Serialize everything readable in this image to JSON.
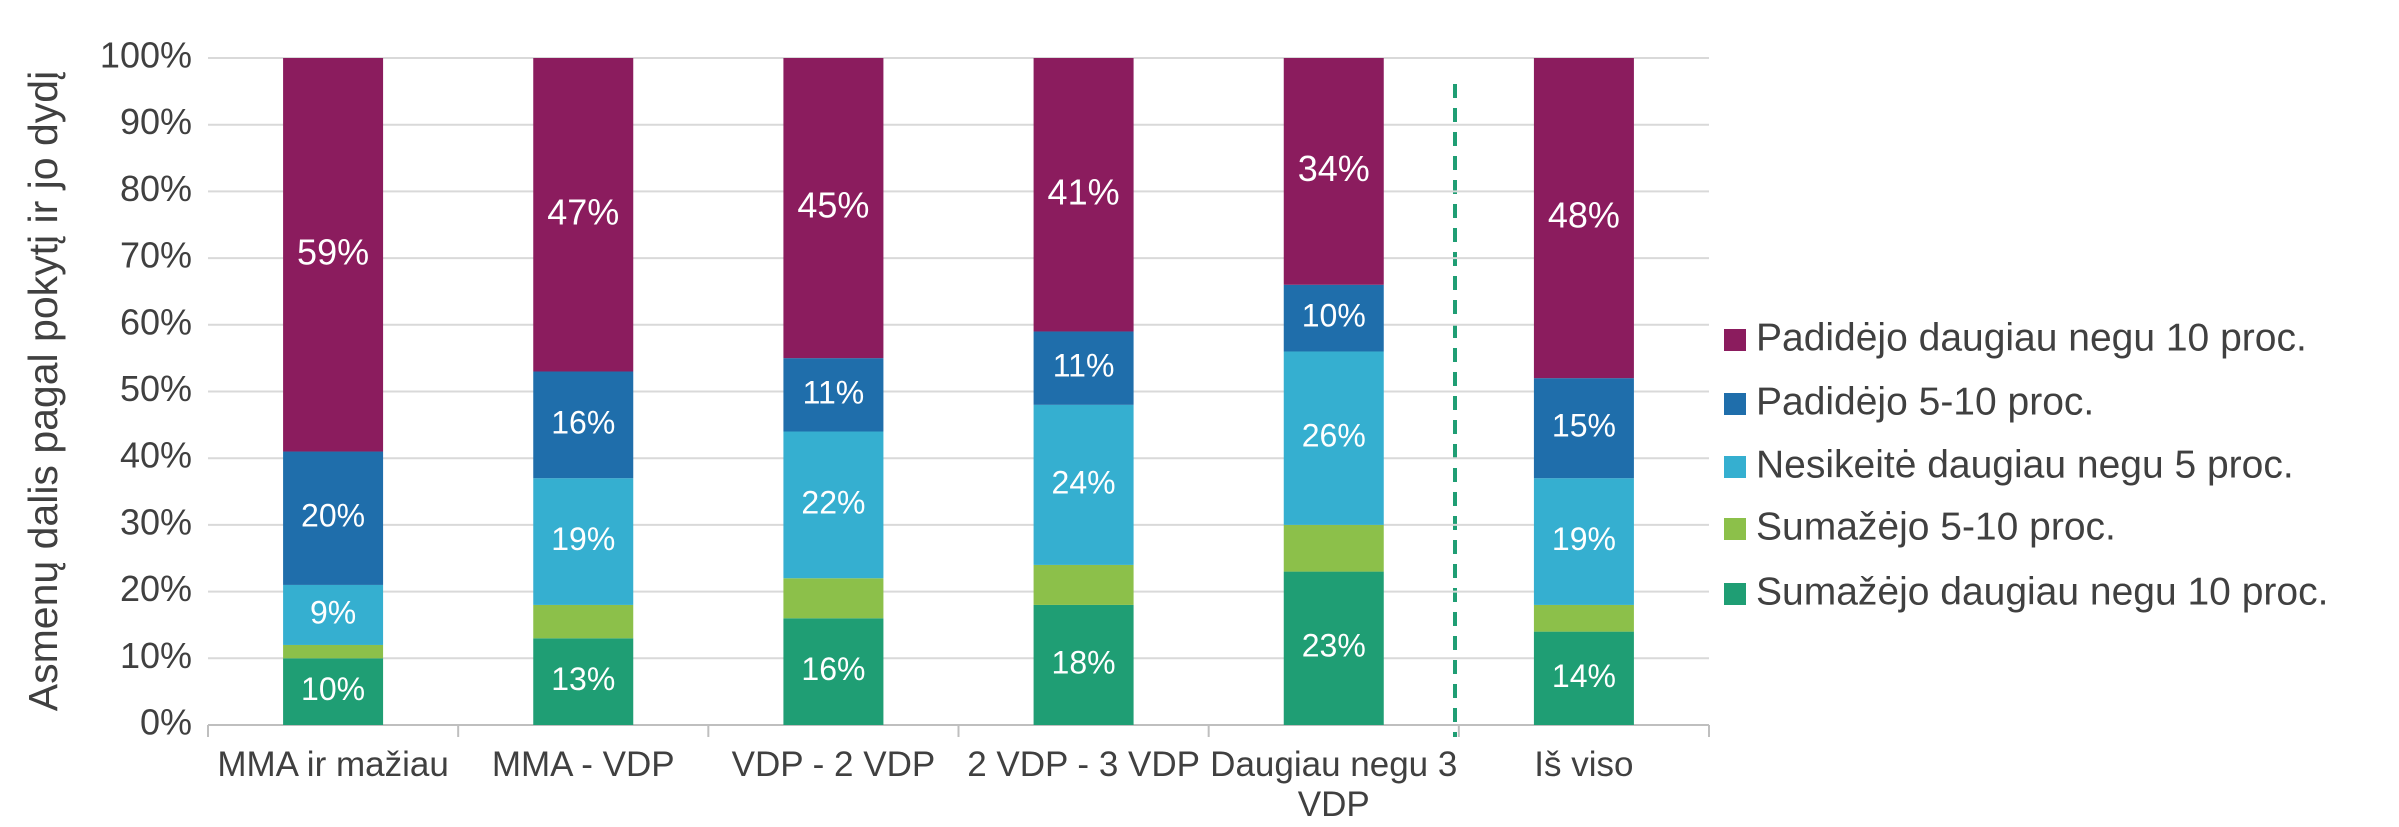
{
  "chart_data": {
    "type": "stacked_bar",
    "y_label": "Asmenų dalis pagal pokytį ir jo dydį",
    "categories": [
      "MMA ir mažiau",
      "MMA - VDP",
      "VDP - 2 VDP",
      "2 VDP - 3 VDP",
      "Daugiau negu 3 VDP",
      "Iš viso"
    ],
    "series": [
      {
        "name": "Sumažėjo daugiau negu 10 proc.",
        "color": "#1f9e74",
        "values": [
          10,
          13,
          16,
          18,
          23,
          14
        ],
        "value_labels": [
          "10%",
          "13%",
          "16%",
          "18%",
          "23%",
          "14%"
        ]
      },
      {
        "name": "Sumažėjo 5-10 proc.",
        "color": "#8cc04a",
        "values": [
          2,
          5,
          6,
          6,
          7,
          4
        ],
        "value_labels": [
          null,
          null,
          null,
          null,
          null,
          null
        ]
      },
      {
        "name": "Nesikeitė daugiau negu 5 proc.",
        "color": "#35afd0",
        "values": [
          9,
          19,
          22,
          24,
          26,
          19
        ],
        "value_labels": [
          "9%",
          "19%",
          "22%",
          "24%",
          "26%",
          "19%"
        ]
      },
      {
        "name": "Padidėjo 5-10 proc.",
        "color": "#1f6eab",
        "values": [
          20,
          16,
          11,
          11,
          10,
          15
        ],
        "value_labels": [
          "20%",
          "16%",
          "11%",
          "11%",
          "10%",
          "15%"
        ]
      },
      {
        "name": "Padidėjo daugiau negu 10 proc.",
        "color": "#8b1c5e",
        "values": [
          59,
          47,
          45,
          41,
          34,
          48
        ],
        "value_labels": [
          "59%",
          "47%",
          "45%",
          "41%",
          "34%",
          "48%"
        ]
      }
    ],
    "ylim": [
      0,
      100
    ],
    "yticks": [
      {
        "value": 0,
        "label": "0%"
      },
      {
        "value": 10,
        "label": "10%"
      },
      {
        "value": 20,
        "label": "20%"
      },
      {
        "value": 30,
        "label": "30%"
      },
      {
        "value": 40,
        "label": "40%"
      },
      {
        "value": 50,
        "label": "50%"
      },
      {
        "value": 60,
        "label": "60%"
      },
      {
        "value": 70,
        "label": "70%"
      },
      {
        "value": 80,
        "label": "80%"
      },
      {
        "value": 90,
        "label": "90%"
      },
      {
        "value": 100,
        "label": "100%"
      }
    ],
    "grid": true,
    "legend": "right"
  }
}
